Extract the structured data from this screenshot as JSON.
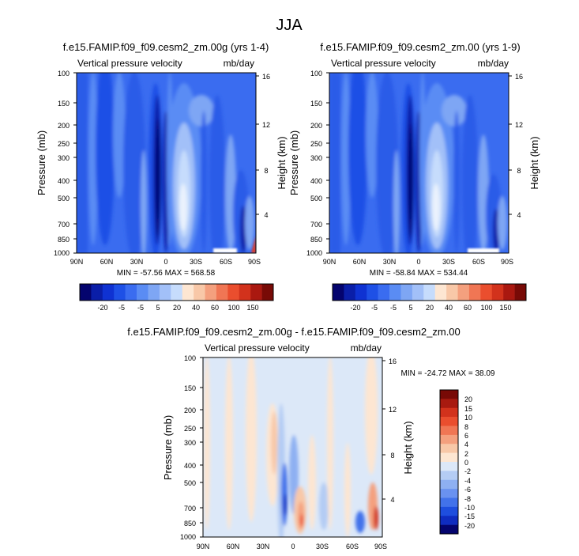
{
  "figure_title": "JJA",
  "chart_data": [
    {
      "type": "heatmap",
      "id": "p1",
      "title": "f.e15.FAMIP.f09_f09.cesm2_zm.00g (yrs 1-4)",
      "left_label": "Vertical pressure velocity",
      "right_label": "mb/day",
      "ylabel": "Pressure (mb)",
      "ylabel_right": "Height (km)",
      "xticks": [
        "90N",
        "60N",
        "30N",
        "0",
        "30S",
        "60S",
        "90S"
      ],
      "yticks": [
        "100",
        "150",
        "200",
        "250",
        "300",
        "400",
        "500",
        "700",
        "850",
        "1000"
      ],
      "height_ticks": [
        "16",
        "12",
        "8",
        "4"
      ],
      "stats": "MIN = -57.56  MAX = 568.58"
    },
    {
      "type": "heatmap",
      "id": "p2",
      "title": "f.e15.FAMIP.f09_f09.cesm2_zm.00 (yrs 1-9)",
      "left_label": "Vertical pressure velocity",
      "right_label": "mb/day",
      "ylabel": "Pressure (mb)",
      "ylabel_right": "Height (km)",
      "xticks": [
        "90N",
        "60N",
        "30N",
        "0",
        "30S",
        "60S",
        "90S"
      ],
      "yticks": [
        "100",
        "150",
        "200",
        "250",
        "300",
        "400",
        "500",
        "700",
        "850",
        "1000"
      ],
      "height_ticks": [
        "16",
        "12",
        "8",
        "4"
      ],
      "stats": "MIN = -58.84  MAX = 534.44"
    },
    {
      "type": "heatmap",
      "id": "p3",
      "title": "f.e15.FAMIP.f09_f09.cesm2_zm.00g - f.e15.FAMIP.f09_f09.cesm2_zm.00",
      "left_label": "Vertical pressure velocity",
      "right_label": "mb/day",
      "ylabel": "Pressure (mb)",
      "ylabel_right": "Height (km)",
      "xticks": [
        "90N",
        "60N",
        "30N",
        "0",
        "30S",
        "60S",
        "90S"
      ],
      "yticks": [
        "100",
        "150",
        "200",
        "250",
        "300",
        "400",
        "500",
        "700",
        "850",
        "1000"
      ],
      "height_ticks": [
        "16",
        "12",
        "8",
        "4"
      ],
      "stats": "MIN = -24.72  MAX = 38.09"
    }
  ],
  "colorbars": {
    "top_labels": [
      "-20",
      "-5",
      "-5",
      "5",
      "20",
      "40",
      "60",
      "100",
      "150"
    ],
    "top_colors": [
      "#04046e",
      "#0a1ea8",
      "#0f32d2",
      "#1e50e6",
      "#3a6cf0",
      "#5a8cf4",
      "#7ea6f4",
      "#a2c0f8",
      "#c6dcfc",
      "#fde6d2",
      "#f8c8a8",
      "#f4a07e",
      "#f07654",
      "#ea4e2e",
      "#d2321c",
      "#aa1810",
      "#780a06"
    ],
    "diff_labels": [
      "20",
      "15",
      "10",
      "8",
      "6",
      "4",
      "2",
      "0",
      "-2",
      "-4",
      "-6",
      "-8",
      "-10",
      "-15",
      "-20"
    ],
    "diff_colors": [
      "#780a06",
      "#a81a10",
      "#d2321c",
      "#ea4e2e",
      "#f07654",
      "#f4a07e",
      "#f8c8a8",
      "#fde6d2",
      "#dce8f8",
      "#b4ccf4",
      "#8eb0f2",
      "#6a92f0",
      "#4272ea",
      "#1e4ede",
      "#0f2cc0",
      "#04046e"
    ]
  },
  "colors": {
    "field_background": "#3a6cf0",
    "diff_background": "#dce8f8"
  }
}
